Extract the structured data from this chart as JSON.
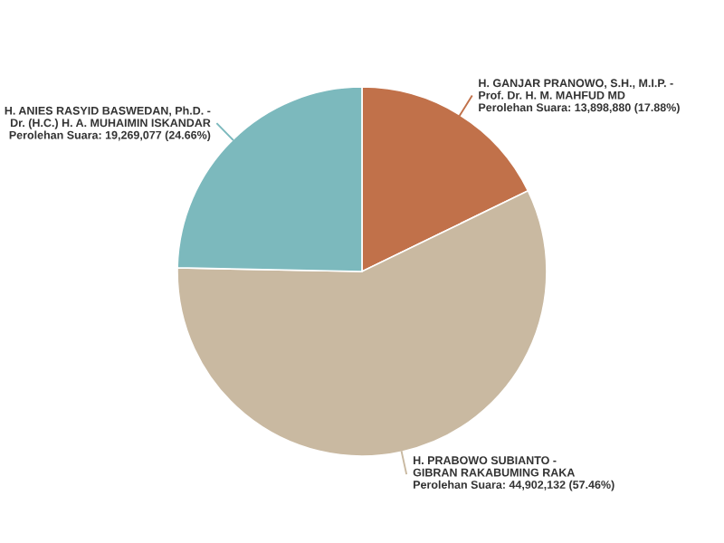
{
  "chart_data": {
    "type": "pie",
    "categories": [
      "H. GANJAR PRANOWO, S.H., M.I.P. - Prof. Dr. H. M. MAHFUD MD",
      "H. PRABOWO SUBIANTO - GIBRAN RAKABUMING RAKA",
      "H. ANIES RASYID BASWEDAN, Ph.D. - Dr. (H.C.) H. A. MUHAIMIN ISKANDAR"
    ],
    "values": [
      13898880,
      44902132,
      19269077
    ],
    "value_labels": [
      "Perolehan Suara: 13,898,880 (17.88%)",
      "Perolehan Suara: 44,902,132 (57.46%)",
      "Perolehan Suara: 19,269,077 (24.66%)"
    ],
    "colors": [
      "#c1714a",
      "#c9b9a1",
      "#7cb9bd"
    ],
    "legend": false
  }
}
